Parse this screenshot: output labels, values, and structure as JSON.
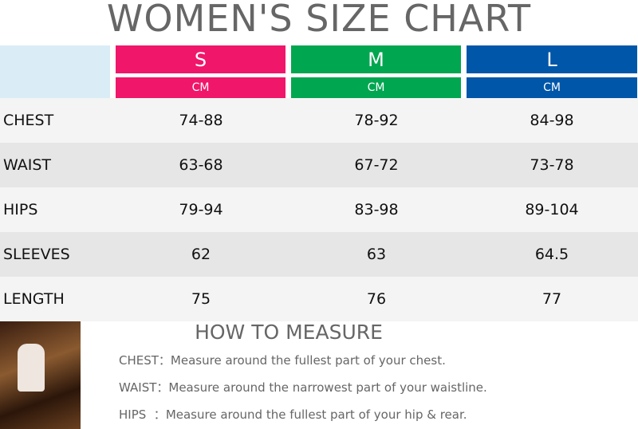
{
  "header": {
    "title": "WOMEN'S SIZE CHART"
  },
  "table": {
    "sizes": [
      {
        "name": "S",
        "unit": "CM",
        "color": "#f0166a"
      },
      {
        "name": "M",
        "unit": "CM",
        "color": "#00a650"
      },
      {
        "name": "L",
        "unit": "CM",
        "color": "#0056a8"
      }
    ],
    "rows": [
      [
        "CHEST",
        "74-88",
        "78-92",
        "84-98"
      ],
      [
        "WAIST",
        "63-68",
        "67-72",
        "73-78"
      ],
      [
        "HIPS",
        "79-94",
        "83-98",
        "89-104"
      ],
      [
        "SLEEVES",
        "62",
        "63",
        "64.5"
      ],
      [
        "LENGTH",
        "75",
        "76",
        "77"
      ]
    ]
  },
  "measure": {
    "title": "HOW TO MEASURE",
    "items": [
      {
        "label": "CHEST：",
        "text": "Measure around the fullest part of your chest."
      },
      {
        "label": "WAIST：",
        "text": "Measure around the narrowest part of your waistline."
      },
      {
        "label": "HIPS  ：",
        "text": "Measure around the fullest part of your hip & rear."
      }
    ]
  }
}
